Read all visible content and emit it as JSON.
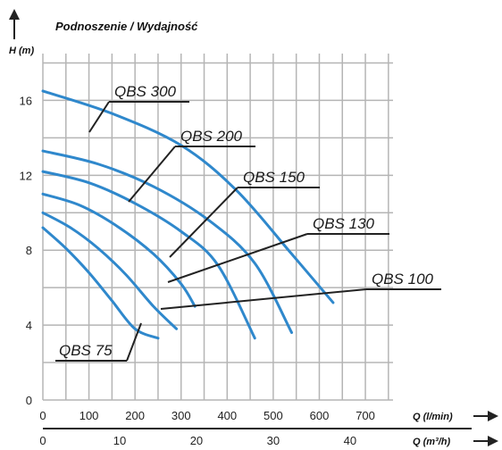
{
  "chart_data": {
    "type": "line",
    "title": "Podnoszenie / Wydajność",
    "ylabel": "H (m)",
    "xlabel": "Q (l/min)",
    "xlabel2": "Q (m³/h)",
    "xlim": [
      0,
      760
    ],
    "ylim": [
      0,
      18.5
    ],
    "x_ticks": [
      0,
      100,
      200,
      300,
      400,
      500,
      600,
      700
    ],
    "x2_ticks": [
      0,
      10,
      20,
      30,
      40
    ],
    "y_ticks": [
      0,
      4,
      8,
      12,
      16
    ],
    "grid": true,
    "series": [
      {
        "name": "QBS 75",
        "x": [
          0,
          50,
          100,
          150,
          200,
          250
        ],
        "y": [
          9.2,
          8.1,
          6.8,
          5.3,
          3.8,
          3.3
        ]
      },
      {
        "name": "QBS 100",
        "x": [
          0,
          60,
          120,
          180,
          240,
          290
        ],
        "y": [
          10.0,
          9.2,
          8.1,
          6.7,
          5.0,
          3.8
        ]
      },
      {
        "name": "QBS 130",
        "x": [
          0,
          80,
          160,
          240,
          300,
          330
        ],
        "y": [
          11.0,
          10.4,
          9.3,
          7.8,
          6.2,
          5.0
        ]
      },
      {
        "name": "QBS 150",
        "x": [
          0,
          100,
          200,
          300,
          380,
          460
        ],
        "y": [
          12.2,
          11.6,
          10.5,
          9.0,
          7.2,
          3.3
        ]
      },
      {
        "name": "QBS 200",
        "x": [
          0,
          120,
          240,
          360,
          460,
          540
        ],
        "y": [
          13.3,
          12.6,
          11.4,
          9.6,
          7.3,
          3.6
        ]
      },
      {
        "name": "QBS 300",
        "x": [
          0,
          150,
          300,
          420,
          540,
          630
        ],
        "y": [
          16.5,
          15.3,
          13.6,
          11.2,
          7.8,
          5.2
        ]
      }
    ],
    "colors": {
      "curve": "#2f88cc",
      "grid": "#b5b5b5",
      "text": "#111111"
    }
  }
}
